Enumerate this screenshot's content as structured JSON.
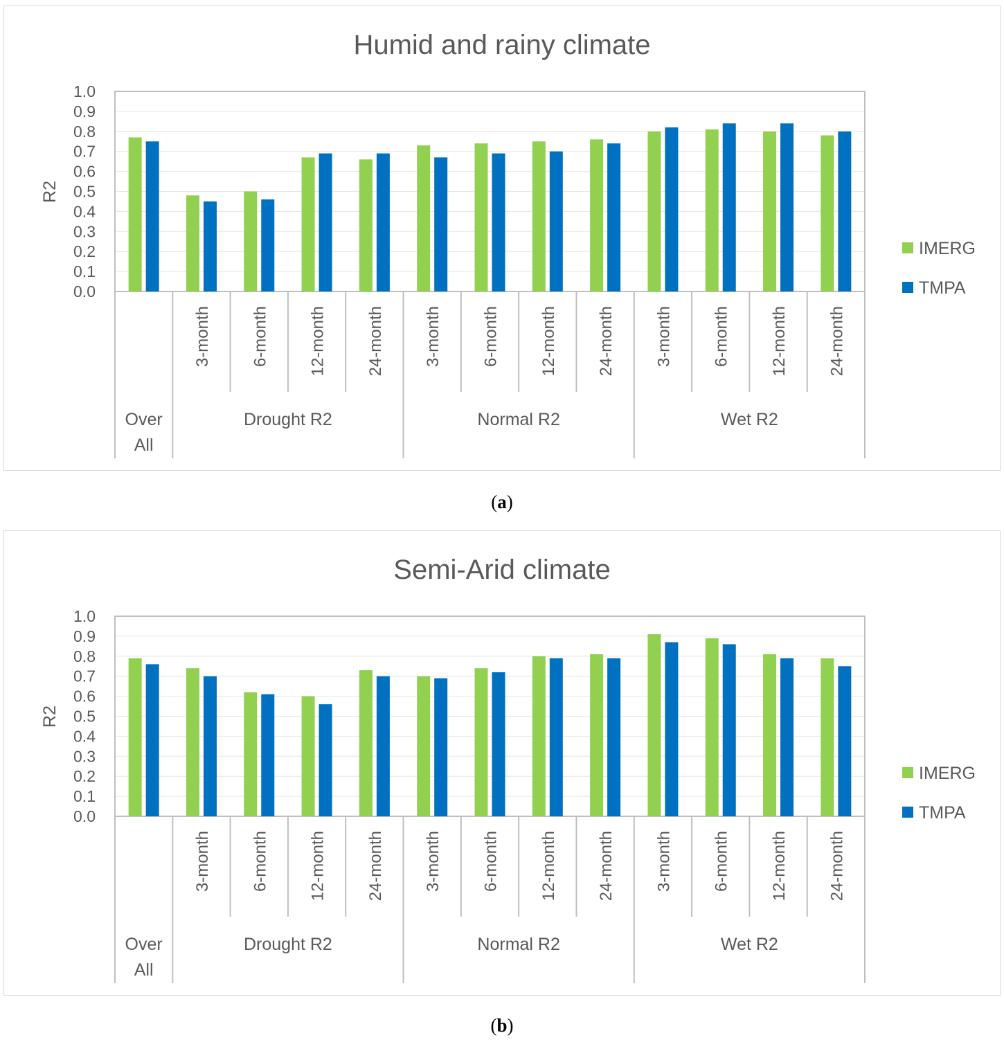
{
  "chart_data": [
    {
      "type": "bar",
      "title": "Humid and rainy climate",
      "ylabel": "R2",
      "xlabel": "",
      "ylim": [
        0,
        1
      ],
      "yticks": [
        "0.0",
        "0.1",
        "0.2",
        "0.3",
        "0.4",
        "0.5",
        "0.6",
        "0.7",
        "0.8",
        "0.9",
        "1.0"
      ],
      "grid": true,
      "legend_position": "right",
      "groups": [
        {
          "label_lines": [
            "Over",
            "All"
          ],
          "categories": [
            ""
          ]
        },
        {
          "label_lines": [
            "Drought R2"
          ],
          "categories": [
            "3-month",
            "6-month",
            "12-month",
            "24-month"
          ]
        },
        {
          "label_lines": [
            "Normal R2"
          ],
          "categories": [
            "3-month",
            "6-month",
            "12-month",
            "24-month"
          ]
        },
        {
          "label_lines": [
            "Wet R2"
          ],
          "categories": [
            "3-month",
            "6-month",
            "12-month",
            "24-month"
          ]
        }
      ],
      "series": [
        {
          "name": "IMERG",
          "color": "#92d050",
          "values": [
            0.77,
            0.48,
            0.5,
            0.67,
            0.66,
            0.73,
            0.74,
            0.75,
            0.76,
            0.8,
            0.81,
            0.8,
            0.78
          ]
        },
        {
          "name": "TMPA",
          "color": "#0070c0",
          "values": [
            0.75,
            0.45,
            0.46,
            0.69,
            0.69,
            0.67,
            0.69,
            0.7,
            0.74,
            0.82,
            0.84,
            0.84,
            0.8
          ]
        }
      ]
    },
    {
      "type": "bar",
      "title": "Semi-Arid climate",
      "ylabel": "R2",
      "xlabel": "",
      "ylim": [
        0,
        1
      ],
      "yticks": [
        "0.0",
        "0.1",
        "0.2",
        "0.3",
        "0.4",
        "0.5",
        "0.6",
        "0.7",
        "0.8",
        "0.9",
        "1.0"
      ],
      "grid": true,
      "legend_position": "right",
      "groups": [
        {
          "label_lines": [
            "Over",
            "All"
          ],
          "categories": [
            ""
          ]
        },
        {
          "label_lines": [
            "Drought R2"
          ],
          "categories": [
            "3-month",
            "6-month",
            "12-month",
            "24-month"
          ]
        },
        {
          "label_lines": [
            "Normal R2"
          ],
          "categories": [
            "3-month",
            "6-month",
            "12-month",
            "24-month"
          ]
        },
        {
          "label_lines": [
            "Wet R2"
          ],
          "categories": [
            "3-month",
            "6-month",
            "12-month",
            "24-month"
          ]
        }
      ],
      "series": [
        {
          "name": "IMERG",
          "color": "#92d050",
          "values": [
            0.79,
            0.74,
            0.62,
            0.6,
            0.73,
            0.7,
            0.74,
            0.8,
            0.81,
            0.91,
            0.89,
            0.81,
            0.79
          ]
        },
        {
          "name": "TMPA",
          "color": "#0070c0",
          "values": [
            0.76,
            0.7,
            0.61,
            0.56,
            0.7,
            0.69,
            0.72,
            0.79,
            0.79,
            0.87,
            0.86,
            0.79,
            0.75
          ]
        }
      ]
    }
  ],
  "captions": {
    "a": {
      "open": "(",
      "letter": "a",
      "close": ")"
    },
    "b": {
      "open": "(",
      "letter": "b",
      "close": ")"
    }
  }
}
